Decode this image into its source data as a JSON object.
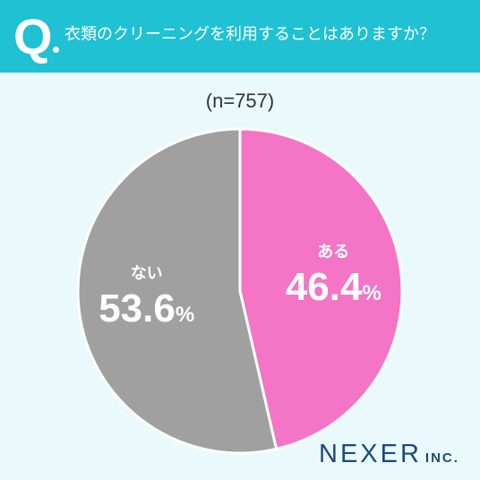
{
  "header": {
    "q_letter": "Q",
    "question": "衣類のクリーニングを利用することはありますか？"
  },
  "sample_size": "(n=757)",
  "colors": {
    "header_bg": "#1fc1d3",
    "page_bg": "#eaf9fb",
    "slice_aru": "#f474c6",
    "slice_nai": "#a0a0a0",
    "logo": "#1b4a7a"
  },
  "chart_data": {
    "type": "pie",
    "title": "衣類のクリーニングを利用することはありますか？",
    "n": 757,
    "unit": "%",
    "slices": [
      {
        "label": "ある",
        "value": 46.4,
        "display": "46.4",
        "color": "#f474c6"
      },
      {
        "label": "ない",
        "value": 53.6,
        "display": "53.6",
        "color": "#a0a0a0"
      }
    ]
  },
  "logo": {
    "main": "NEXER",
    "sub": "INC."
  }
}
